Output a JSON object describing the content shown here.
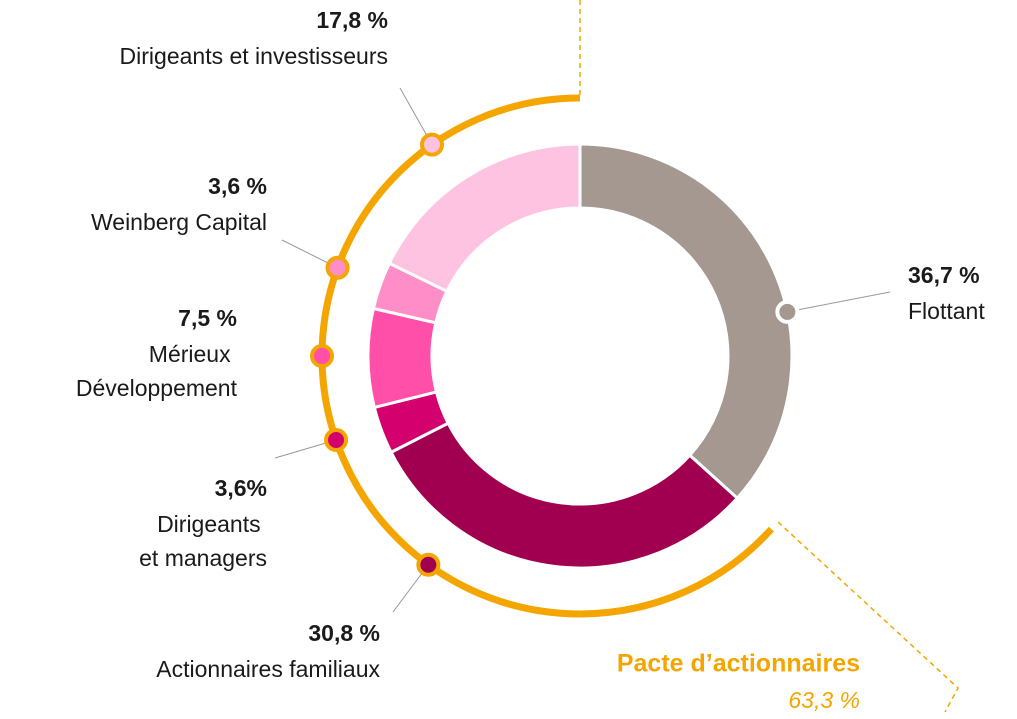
{
  "chart_data": {
    "type": "donut",
    "categories": [
      "Flottant",
      "Actionnaires familiaux",
      "Dirigeants et managers",
      "Mérieux Développement",
      "Weinberg Capital",
      "Dirigeants et investisseurs"
    ],
    "values": [
      36.7,
      30.8,
      3.6,
      7.5,
      3.6,
      17.8
    ],
    "value_labels": [
      "36,7 %",
      "30,8 %",
      "3,6%",
      "7,5 %",
      "3,6 %",
      "17,8 %"
    ],
    "colors": [
      "#a59890",
      "#a0004f",
      "#d4006e",
      "#ff4fa8",
      "#ff8ec8",
      "#fdc3e0"
    ],
    "group": {
      "label": "Pacte d’actionnaires",
      "value": 63.3,
      "value_label": "63,3 %",
      "color": "#f4a500"
    }
  }
}
